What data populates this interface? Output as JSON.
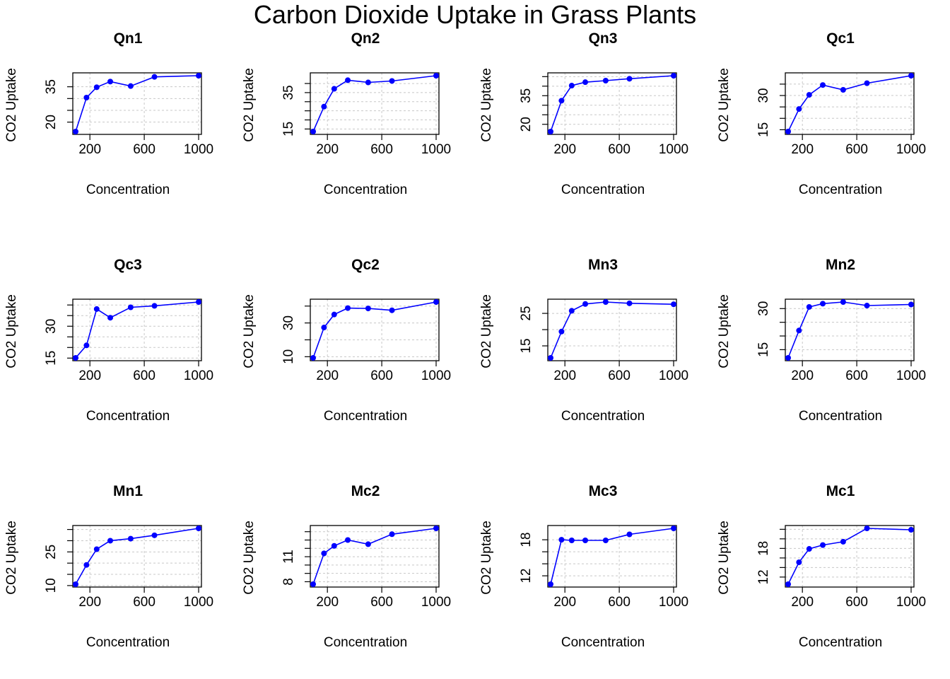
{
  "figure_title": "Carbon Dioxide Uptake in Grass Plants",
  "colors": {
    "series": "#0000ff",
    "grid": "#c8c8c8",
    "axis": "#000000"
  },
  "chart_data": [
    {
      "type": "line",
      "title": "Qn1",
      "xlabel": "Concentration",
      "ylabel": "CO2 Uptake",
      "x": [
        95,
        175,
        250,
        350,
        500,
        675,
        1000
      ],
      "y": [
        16.0,
        30.4,
        34.8,
        37.2,
        35.3,
        39.2,
        39.7
      ],
      "xlim": [
        95,
        1000
      ],
      "ylim": [
        16.0,
        39.7
      ],
      "xticks": [
        200,
        600,
        1000
      ],
      "yticks": [
        20,
        35
      ],
      "yminor": [
        20,
        25,
        30,
        35
      ],
      "grid": true
    },
    {
      "type": "line",
      "title": "Qn2",
      "xlabel": "Concentration",
      "ylabel": "CO2 Uptake",
      "x": [
        95,
        175,
        250,
        350,
        500,
        675,
        1000
      ],
      "y": [
        13.6,
        27.3,
        37.1,
        41.8,
        40.6,
        41.4,
        44.3
      ],
      "xlim": [
        95,
        1000
      ],
      "ylim": [
        13.6,
        44.3
      ],
      "xticks": [
        200,
        600,
        1000
      ],
      "yticks": [
        15,
        35
      ],
      "yminor": [
        15,
        20,
        25,
        30,
        35,
        40
      ],
      "grid": true
    },
    {
      "type": "line",
      "title": "Qn3",
      "xlabel": "Concentration",
      "ylabel": "CO2 Uptake",
      "x": [
        95,
        175,
        250,
        350,
        500,
        675,
        1000
      ],
      "y": [
        16.2,
        32.4,
        40.3,
        42.1,
        42.9,
        43.9,
        45.5
      ],
      "xlim": [
        95,
        1000
      ],
      "ylim": [
        16.2,
        45.5
      ],
      "xticks": [
        200,
        600,
        1000
      ],
      "yticks": [
        20,
        35
      ],
      "yminor": [
        20,
        25,
        30,
        35,
        40,
        45
      ],
      "grid": true
    },
    {
      "type": "line",
      "title": "Qc1",
      "xlabel": "Concentration",
      "ylabel": "CO2 Uptake",
      "x": [
        95,
        175,
        250,
        350,
        500,
        675,
        1000
      ],
      "y": [
        14.2,
        24.1,
        30.3,
        34.6,
        32.5,
        35.4,
        38.7
      ],
      "xlim": [
        95,
        1000
      ],
      "ylim": [
        14.2,
        38.7
      ],
      "xticks": [
        200,
        600,
        1000
      ],
      "yticks": [
        15,
        30
      ],
      "yminor": [
        15,
        20,
        25,
        30,
        35
      ],
      "grid": true
    },
    {
      "type": "line",
      "title": "Qc3",
      "xlabel": "Concentration",
      "ylabel": "CO2 Uptake",
      "x": [
        95,
        175,
        250,
        350,
        500,
        675,
        1000
      ],
      "y": [
        15.1,
        21.0,
        38.1,
        34.0,
        38.9,
        39.6,
        41.4
      ],
      "xlim": [
        95,
        1000
      ],
      "ylim": [
        15.1,
        41.4
      ],
      "xticks": [
        200,
        600,
        1000
      ],
      "yticks": [
        15,
        30
      ],
      "yminor": [
        15,
        20,
        25,
        30,
        35,
        40
      ],
      "grid": true
    },
    {
      "type": "line",
      "title": "Qc2",
      "xlabel": "Concentration",
      "ylabel": "CO2 Uptake",
      "x": [
        95,
        175,
        250,
        350,
        500,
        675,
        1000
      ],
      "y": [
        9.3,
        27.3,
        35.0,
        38.8,
        38.6,
        37.5,
        42.4
      ],
      "xlim": [
        95,
        1000
      ],
      "ylim": [
        9.3,
        42.4
      ],
      "xticks": [
        200,
        600,
        1000
      ],
      "yticks": [
        10,
        30
      ],
      "yminor": [
        10,
        20,
        30,
        40
      ],
      "grid": true
    },
    {
      "type": "line",
      "title": "Mn3",
      "xlabel": "Concentration",
      "ylabel": "CO2 Uptake",
      "x": [
        95,
        175,
        250,
        350,
        500,
        675,
        1000
      ],
      "y": [
        11.3,
        19.4,
        25.8,
        27.9,
        28.5,
        28.1,
        27.8
      ],
      "xlim": [
        95,
        1000
      ],
      "ylim": [
        11.3,
        28.5
      ],
      "xticks": [
        200,
        600,
        1000
      ],
      "yticks": [
        15,
        25
      ],
      "yminor": [
        15,
        20,
        25
      ],
      "grid": true
    },
    {
      "type": "line",
      "title": "Mn2",
      "xlabel": "Concentration",
      "ylabel": "CO2 Uptake",
      "x": [
        95,
        175,
        250,
        350,
        500,
        675,
        1000
      ],
      "y": [
        12.0,
        22.0,
        30.6,
        31.8,
        32.4,
        31.1,
        31.5
      ],
      "xlim": [
        95,
        1000
      ],
      "ylim": [
        12.0,
        32.4
      ],
      "xticks": [
        200,
        600,
        1000
      ],
      "yticks": [
        15,
        30
      ],
      "yminor": [
        15,
        20,
        25,
        30
      ],
      "grid": true
    },
    {
      "type": "line",
      "title": "Mn1",
      "xlabel": "Concentration",
      "ylabel": "CO2 Uptake",
      "x": [
        95,
        175,
        250,
        350,
        500,
        675,
        1000
      ],
      "y": [
        10.6,
        19.2,
        26.2,
        30.0,
        30.9,
        32.4,
        35.5
      ],
      "xlim": [
        95,
        1000
      ],
      "ylim": [
        10.6,
        35.5
      ],
      "xticks": [
        200,
        600,
        1000
      ],
      "yticks": [
        10,
        25
      ],
      "yminor": [
        10,
        15,
        20,
        25,
        30,
        35
      ],
      "grid": true
    },
    {
      "type": "line",
      "title": "Mc2",
      "xlabel": "Concentration",
      "ylabel": "CO2 Uptake",
      "x": [
        95,
        175,
        250,
        350,
        500,
        675,
        1000
      ],
      "y": [
        7.7,
        11.4,
        12.3,
        13.0,
        12.5,
        13.7,
        14.4
      ],
      "xlim": [
        95,
        1000
      ],
      "ylim": [
        7.7,
        14.4
      ],
      "xticks": [
        200,
        600,
        1000
      ],
      "yticks": [
        8,
        11
      ],
      "yminor": [
        8,
        9,
        10,
        11,
        12,
        13,
        14
      ],
      "grid": true
    },
    {
      "type": "line",
      "title": "Mc3",
      "xlabel": "Concentration",
      "ylabel": "CO2 Uptake",
      "x": [
        95,
        175,
        250,
        350,
        500,
        675,
        1000
      ],
      "y": [
        10.6,
        18.0,
        17.9,
        17.9,
        17.9,
        18.9,
        19.9
      ],
      "xlim": [
        95,
        1000
      ],
      "ylim": [
        10.6,
        19.9
      ],
      "xticks": [
        200,
        600,
        1000
      ],
      "yticks": [
        12,
        18
      ],
      "yminor": [
        12,
        14,
        16,
        18
      ],
      "grid": true
    },
    {
      "type": "line",
      "title": "Mc1",
      "xlabel": "Concentration",
      "ylabel": "CO2 Uptake",
      "x": [
        95,
        175,
        250,
        350,
        500,
        675,
        1000
      ],
      "y": [
        10.5,
        15.1,
        17.9,
        18.7,
        19.4,
        22.2,
        21.9
      ],
      "xlim": [
        95,
        1000
      ],
      "ylim": [
        10.5,
        22.2
      ],
      "xticks": [
        200,
        600,
        1000
      ],
      "yticks": [
        12,
        18
      ],
      "yminor": [
        12,
        14,
        16,
        18,
        20,
        22
      ],
      "grid": true
    }
  ]
}
